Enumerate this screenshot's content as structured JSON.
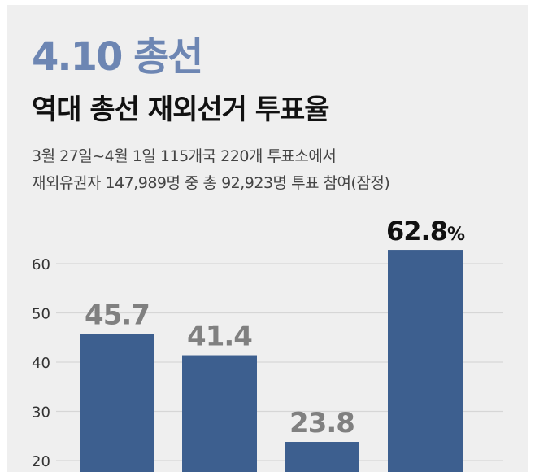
{
  "headline": "4.10 총선",
  "title": "역대 총선 재외선거 투표율",
  "subtitle": [
    "3월 27일~4월 1일 115개국 220개 투표소에서",
    "재외유권자 147,989명 중 총 92,923명 투표 참여(잠정)"
  ],
  "colors": {
    "headline": "#6d86b3",
    "bar": "#3d5f8f",
    "value_label": "#808080",
    "highlight_label": "#111111",
    "gridline": "#d6d6d6"
  },
  "chart_data": {
    "type": "bar",
    "title": "역대 총선 재외선거 투표율",
    "ylim": [
      16,
      70
    ],
    "yticks": [
      20,
      30,
      40,
      50,
      60
    ],
    "grid": true,
    "values": [
      45.7,
      41.4,
      23.8,
      62.8
    ],
    "value_labels": [
      "45.7",
      "41.4",
      "23.8",
      "62.8"
    ],
    "highlight_index": 3,
    "highlight_unit": "%"
  }
}
